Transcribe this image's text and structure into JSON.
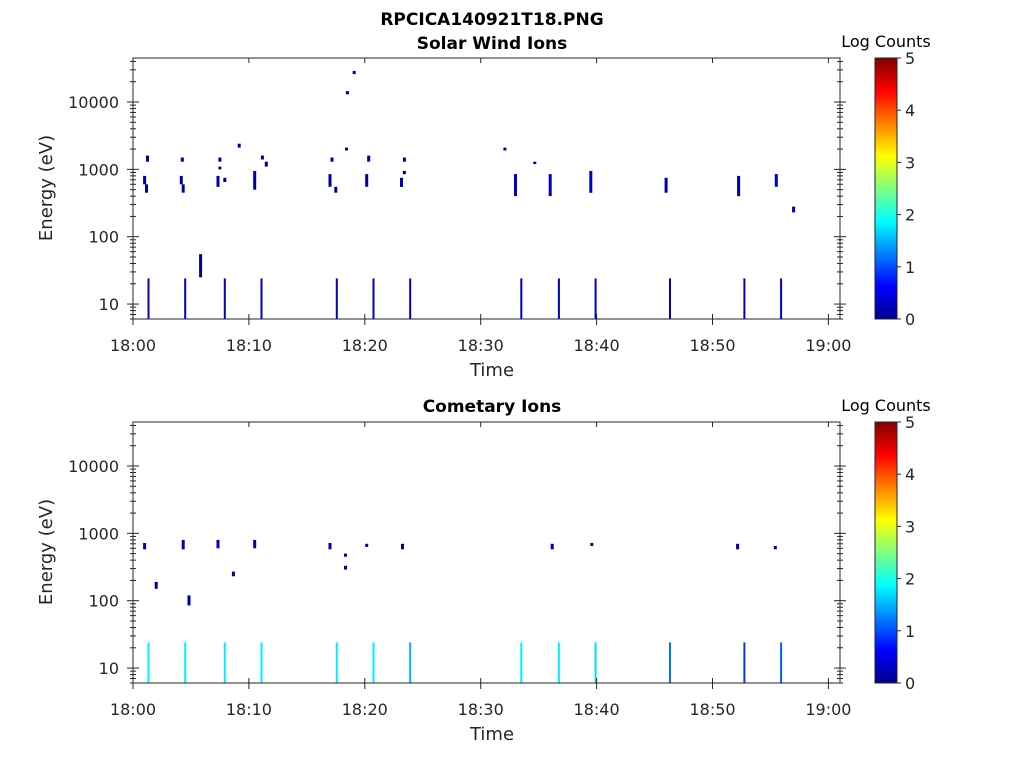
{
  "page_title": "RPCICA140921T18.PNG",
  "chart_data": [
    {
      "type": "heatmap",
      "title": "Solar Wind Ions",
      "xlabel": "Time",
      "ylabel": "Energy (eV)",
      "xlim": [
        "18:00",
        "19:01"
      ],
      "ylim": [
        6,
        45000
      ],
      "yscale": "log",
      "x_ticks": [
        "18:00",
        "18:10",
        "18:20",
        "18:30",
        "18:40",
        "18:50",
        "19:00"
      ],
      "y_ticks": [
        "10",
        "100",
        "1000",
        "10000"
      ],
      "colorbar": {
        "label": "Log Counts",
        "min": 0,
        "max": 5,
        "ticks": [
          "0",
          "1",
          "2",
          "3",
          "4",
          "5"
        ],
        "colormap": "jet"
      },
      "cells": [
        {
          "t": "18:01:00",
          "e_low": 600,
          "e_high": 800,
          "log_counts": 0.2
        },
        {
          "t": "18:01:10",
          "e_low": 450,
          "e_high": 600,
          "log_counts": 0.2
        },
        {
          "t": "18:01:15",
          "e_low": 1300,
          "e_high": 1600,
          "log_counts": 0.1
        },
        {
          "t": "18:04:10",
          "e_low": 600,
          "e_high": 800,
          "log_counts": 0.2
        },
        {
          "t": "18:04:20",
          "e_low": 450,
          "e_high": 600,
          "log_counts": 0.2
        },
        {
          "t": "18:04:15",
          "e_low": 1300,
          "e_high": 1500,
          "log_counts": 0.1
        },
        {
          "t": "18:05:50",
          "e_low": 25,
          "e_high": 55,
          "log_counts": 0.1
        },
        {
          "t": "18:07:20",
          "e_low": 550,
          "e_high": 800,
          "log_counts": 0.2
        },
        {
          "t": "18:07:30",
          "e_low": 1300,
          "e_high": 1500,
          "log_counts": 0.1
        },
        {
          "t": "18:07:30",
          "e_low": 1000,
          "e_high": 1100,
          "log_counts": 0.1
        },
        {
          "t": "18:07:55",
          "e_low": 650,
          "e_high": 750,
          "log_counts": 0.1
        },
        {
          "t": "18:09:10",
          "e_low": 2100,
          "e_high": 2400,
          "log_counts": 0.1
        },
        {
          "t": "18:10:30",
          "e_low": 500,
          "e_high": 950,
          "log_counts": 0.2
        },
        {
          "t": "18:11:10",
          "e_low": 1400,
          "e_high": 1600,
          "log_counts": 0.1
        },
        {
          "t": "18:11:30",
          "e_low": 1100,
          "e_high": 1300,
          "log_counts": 0.1
        },
        {
          "t": "18:17:00",
          "e_low": 550,
          "e_high": 850,
          "log_counts": 0.2
        },
        {
          "t": "18:17:10",
          "e_low": 1300,
          "e_high": 1500,
          "log_counts": 0.1
        },
        {
          "t": "18:17:30",
          "e_low": 450,
          "e_high": 550,
          "log_counts": 0.1
        },
        {
          "t": "18:18:25",
          "e_low": 1900,
          "e_high": 2100,
          "log_counts": 0.1
        },
        {
          "t": "18:18:30",
          "e_low": 13000,
          "e_high": 14500,
          "log_counts": 0.1
        },
        {
          "t": "18:19:05",
          "e_low": 26000,
          "e_high": 29000,
          "log_counts": 0.1
        },
        {
          "t": "18:20:10",
          "e_low": 550,
          "e_high": 850,
          "log_counts": 0.2
        },
        {
          "t": "18:20:20",
          "e_low": 1300,
          "e_high": 1600,
          "log_counts": 0.1
        },
        {
          "t": "18:23:10",
          "e_low": 550,
          "e_high": 750,
          "log_counts": 0.2
        },
        {
          "t": "18:23:25",
          "e_low": 1300,
          "e_high": 1500,
          "log_counts": 0.1
        },
        {
          "t": "18:23:25",
          "e_low": 850,
          "e_high": 950,
          "log_counts": 0.1
        },
        {
          "t": "18:32:05",
          "e_low": 1900,
          "e_high": 2100,
          "log_counts": 0.1
        },
        {
          "t": "18:33:00",
          "e_low": 400,
          "e_high": 850,
          "log_counts": 0.3
        },
        {
          "t": "18:34:40",
          "e_low": 1200,
          "e_high": 1300,
          "log_counts": 0.1
        },
        {
          "t": "18:36:00",
          "e_low": 400,
          "e_high": 850,
          "log_counts": 0.3
        },
        {
          "t": "18:39:30",
          "e_low": 450,
          "e_high": 950,
          "log_counts": 0.3
        },
        {
          "t": "18:46:00",
          "e_low": 450,
          "e_high": 750,
          "log_counts": 0.2
        },
        {
          "t": "18:52:15",
          "e_low": 400,
          "e_high": 800,
          "log_counts": 0.2
        },
        {
          "t": "18:55:30",
          "e_low": 550,
          "e_high": 850,
          "log_counts": 0.3
        },
        {
          "t": "18:57:00",
          "e_low": 230,
          "e_high": 280,
          "log_counts": 0.2
        }
      ],
      "low_energy_spikes": [
        {
          "t": "18:01:20",
          "log_counts": 0.3
        },
        {
          "t": "18:04:30",
          "log_counts": 0.3
        },
        {
          "t": "18:07:55",
          "log_counts": 0.3
        },
        {
          "t": "18:11:05",
          "log_counts": 0.3
        },
        {
          "t": "18:17:35",
          "log_counts": 0.3
        },
        {
          "t": "18:20:45",
          "log_counts": 0.3
        },
        {
          "t": "18:23:55",
          "log_counts": 0.3
        },
        {
          "t": "18:33:30",
          "log_counts": 0.3
        },
        {
          "t": "18:36:45",
          "log_counts": 0.3
        },
        {
          "t": "18:39:55",
          "log_counts": 0.3
        },
        {
          "t": "18:46:20",
          "log_counts": 0.3
        },
        {
          "t": "18:52:45",
          "log_counts": 0.3
        },
        {
          "t": "18:55:55",
          "log_counts": 0.3
        }
      ],
      "spike_range": [
        6,
        24
      ]
    },
    {
      "type": "heatmap",
      "title": "Cometary Ions",
      "xlabel": "Time",
      "ylabel": "Energy (eV)",
      "xlim": [
        "18:00",
        "19:01"
      ],
      "ylim": [
        6,
        45000
      ],
      "yscale": "log",
      "x_ticks": [
        "18:00",
        "18:10",
        "18:20",
        "18:30",
        "18:40",
        "18:50",
        "19:00"
      ],
      "y_ticks": [
        "10",
        "100",
        "1000",
        "10000"
      ],
      "colorbar": {
        "label": "Log Counts",
        "min": 0,
        "max": 5,
        "ticks": [
          "0",
          "1",
          "2",
          "3",
          "4",
          "5"
        ],
        "colormap": "jet"
      },
      "cells": [
        {
          "t": "18:01:00",
          "e_low": 580,
          "e_high": 720,
          "log_counts": 0.2
        },
        {
          "t": "18:02:00",
          "e_low": 150,
          "e_high": 190,
          "log_counts": 0.1
        },
        {
          "t": "18:04:20",
          "e_low": 580,
          "e_high": 800,
          "log_counts": 0.2
        },
        {
          "t": "18:04:50",
          "e_low": 85,
          "e_high": 120,
          "log_counts": 0.2
        },
        {
          "t": "18:07:20",
          "e_low": 600,
          "e_high": 800,
          "log_counts": 0.2
        },
        {
          "t": "18:08:40",
          "e_low": 230,
          "e_high": 270,
          "log_counts": 0.1
        },
        {
          "t": "18:10:30",
          "e_low": 600,
          "e_high": 800,
          "log_counts": 0.2
        },
        {
          "t": "18:17:00",
          "e_low": 580,
          "e_high": 720,
          "log_counts": 0.2
        },
        {
          "t": "18:18:20",
          "e_low": 450,
          "e_high": 500,
          "log_counts": 0.1
        },
        {
          "t": "18:18:20",
          "e_low": 290,
          "e_high": 330,
          "log_counts": 0.1
        },
        {
          "t": "18:20:10",
          "e_low": 630,
          "e_high": 700,
          "log_counts": 0.1
        },
        {
          "t": "18:23:15",
          "e_low": 580,
          "e_high": 700,
          "log_counts": 0.1
        },
        {
          "t": "18:36:10",
          "e_low": 580,
          "e_high": 700,
          "log_counts": 0.2
        },
        {
          "t": "18:39:35",
          "e_low": 650,
          "e_high": 720,
          "log_counts": 0.1
        },
        {
          "t": "18:52:10",
          "e_low": 580,
          "e_high": 700,
          "log_counts": 0.1
        },
        {
          "t": "18:55:25",
          "e_low": 580,
          "e_high": 650,
          "log_counts": 0.1
        }
      ],
      "low_energy_spikes": [
        {
          "t": "18:01:20",
          "log_counts": 1.8
        },
        {
          "t": "18:04:30",
          "log_counts": 1.8
        },
        {
          "t": "18:07:55",
          "log_counts": 1.8
        },
        {
          "t": "18:11:05",
          "log_counts": 1.8
        },
        {
          "t": "18:17:35",
          "log_counts": 1.8
        },
        {
          "t": "18:20:45",
          "log_counts": 1.8
        },
        {
          "t": "18:23:55",
          "log_counts": 1.5
        },
        {
          "t": "18:33:30",
          "log_counts": 1.8
        },
        {
          "t": "18:36:45",
          "log_counts": 1.8
        },
        {
          "t": "18:39:55",
          "log_counts": 1.7
        },
        {
          "t": "18:46:20",
          "log_counts": 1.2
        },
        {
          "t": "18:52:45",
          "log_counts": 0.9
        },
        {
          "t": "18:55:55",
          "log_counts": 1.1
        }
      ],
      "spike_range": [
        6,
        24
      ]
    }
  ]
}
